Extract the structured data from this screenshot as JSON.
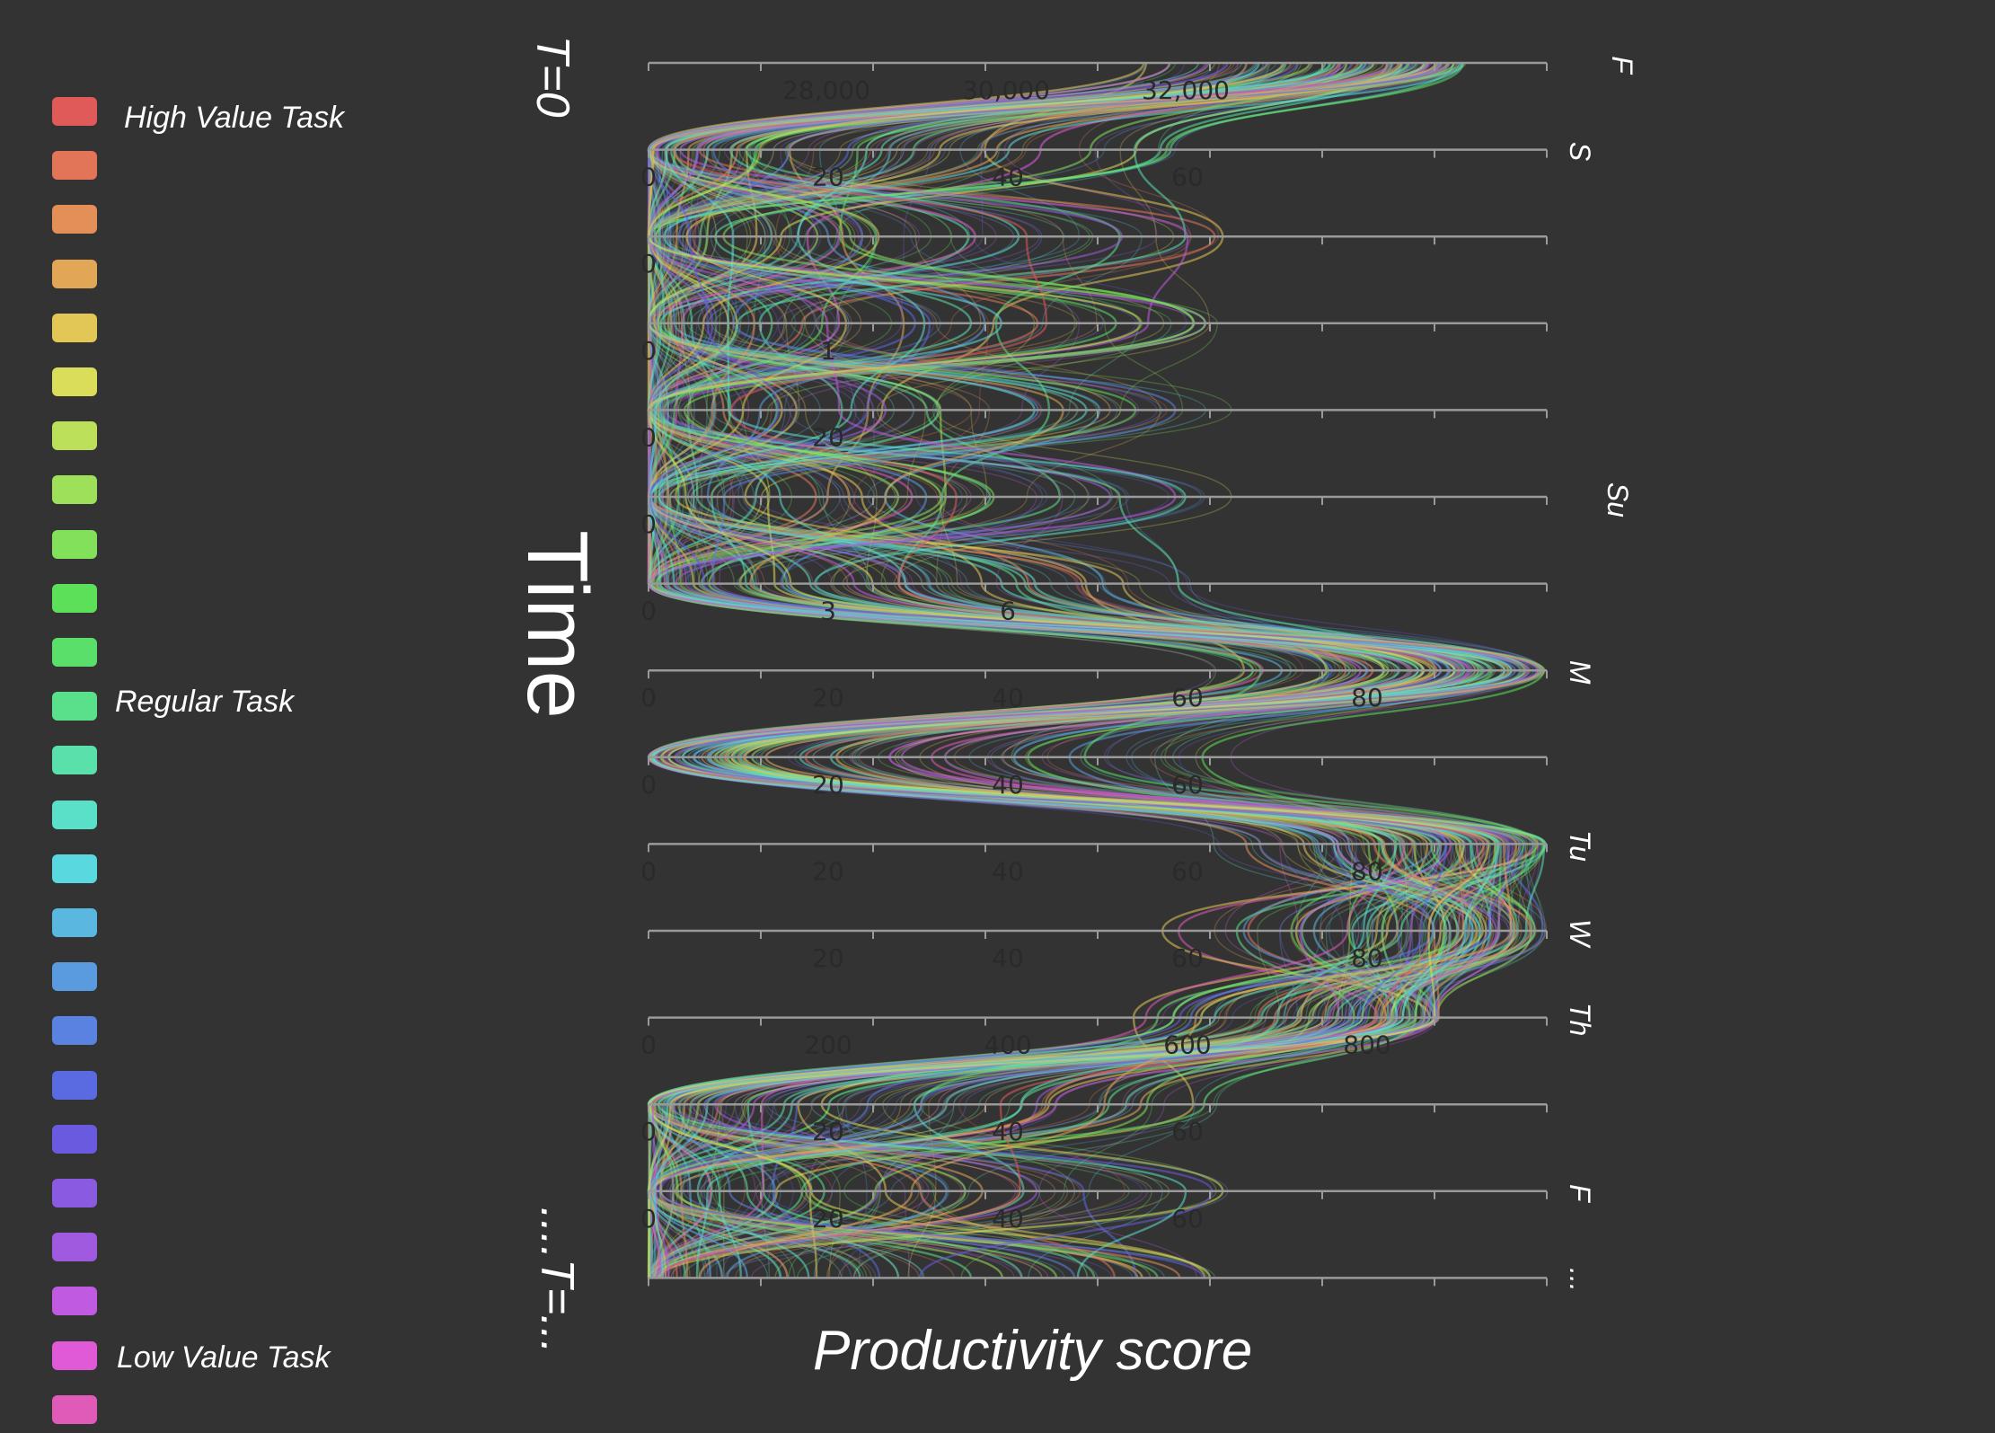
{
  "legend": {
    "colors": [
      "#e05a5a",
      "#e27557",
      "#e48e58",
      "#e2a756",
      "#e2c756",
      "#d9dd5a",
      "#bde05a",
      "#9fe05a",
      "#83e05a",
      "#5ce05a",
      "#5ae06a",
      "#5ae08a",
      "#5ae0ab",
      "#5ae0c8",
      "#5ad8e0",
      "#5ab8e0",
      "#5a9be0",
      "#5a82e0",
      "#5a6ae0",
      "#6a5ae0",
      "#8a5ae0",
      "#a05ae0",
      "#c05ae0",
      "#e05ad8",
      "#e05ab8"
    ],
    "labels": {
      "high": "High Value Task",
      "regular": "Regular Task",
      "low": "Low Value Task"
    }
  },
  "labels": {
    "t_start": "T=0",
    "time": "Time",
    "t_end": "....T=...",
    "x_axis": "Productivity score"
  },
  "chart_data": {
    "type": "line",
    "xlabel": "Productivity score",
    "ylabel": "Time",
    "axes": [
      {
        "day": "F",
        "ticks": [
          "28,000",
          "30,000",
          "32,000"
        ]
      },
      {
        "day": "S",
        "ticks": [
          "0",
          "20",
          "40",
          "60"
        ]
      },
      {
        "day": "",
        "ticks": [
          "0"
        ]
      },
      {
        "day": "",
        "ticks": [
          "0",
          "1"
        ]
      },
      {
        "day": "Su",
        "ticks": [
          "0",
          "20"
        ]
      },
      {
        "day": "",
        "ticks": [
          "0"
        ]
      },
      {
        "day": "",
        "ticks": [
          "0",
          "3",
          "6"
        ]
      },
      {
        "day": "M",
        "ticks": [
          "0",
          "20",
          "40",
          "60",
          "80"
        ]
      },
      {
        "day": "",
        "ticks": [
          "0",
          "20",
          "40",
          "60"
        ]
      },
      {
        "day": "Tu",
        "ticks": [
          "0",
          "20",
          "40",
          "60",
          "80"
        ]
      },
      {
        "day": "W",
        "ticks": [
          "",
          "20",
          "40",
          "60",
          "80"
        ]
      },
      {
        "day": "Th",
        "ticks": [
          "0",
          "200",
          "400",
          "600",
          "800"
        ]
      },
      {
        "day": "",
        "ticks": [
          "0",
          "20",
          "40",
          "60"
        ]
      },
      {
        "day": "F",
        "ticks": [
          "0",
          "20",
          "40",
          "60"
        ]
      },
      {
        "day": "...",
        "ticks": []
      }
    ],
    "series": [
      {
        "name": "High Value Task",
        "color": "#e05a5a"
      },
      {
        "name": "Regular Task",
        "color": "#5ae08a"
      },
      {
        "name": "Low Value Task",
        "color": "#e05ad8"
      }
    ],
    "peaks_fraction": [
      0.91,
      0.0,
      0.0,
      0.0,
      0.0,
      0.0,
      0.0,
      1.0,
      0.0,
      1.0,
      1.0,
      0.88,
      0.0,
      0.0,
      0.0
    ],
    "grid": true,
    "legend": "left"
  }
}
